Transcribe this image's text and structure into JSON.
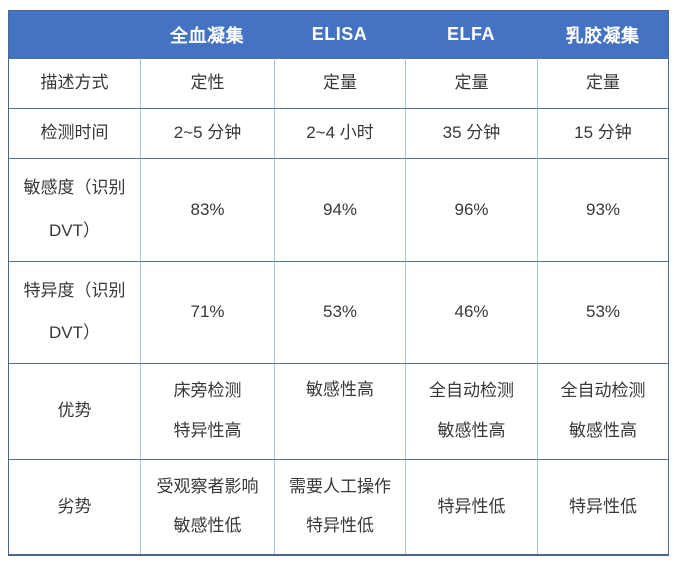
{
  "colors": {
    "header_background": "#4573C4",
    "header_text": "#FFFFFF",
    "horizontal_border": "#4F7194",
    "vertical_border": "#A5C4E3",
    "outer_border": "#49688C",
    "body_text": "#383838"
  },
  "chart_data": {
    "type": "table",
    "title": "",
    "columns": [
      "",
      "全血凝集",
      "ELISA",
      "ELFA",
      "乳胶凝集"
    ],
    "rows": [
      {
        "label": {
          "lines": [
            "描述方式"
          ]
        },
        "cells": [
          {
            "lines": [
              "定性"
            ]
          },
          {
            "lines": [
              "定量"
            ]
          },
          {
            "lines": [
              "定量"
            ]
          },
          {
            "lines": [
              "定量"
            ]
          }
        ]
      },
      {
        "label": {
          "lines": [
            "检测时间"
          ]
        },
        "cells": [
          {
            "lines": [
              "2~5 分钟"
            ]
          },
          {
            "lines": [
              "2~4 小时"
            ]
          },
          {
            "lines": [
              "35 分钟"
            ]
          },
          {
            "lines": [
              "15 分钟"
            ]
          }
        ]
      },
      {
        "label": {
          "lines": [
            "敏感度（识别",
            "DVT）"
          ]
        },
        "cells": [
          {
            "lines": [
              "83%"
            ]
          },
          {
            "lines": [
              "94%"
            ]
          },
          {
            "lines": [
              "96%"
            ]
          },
          {
            "lines": [
              "93%"
            ]
          }
        ]
      },
      {
        "label": {
          "lines": [
            "特异度（识别",
            "DVT）"
          ]
        },
        "cells": [
          {
            "lines": [
              "71%"
            ]
          },
          {
            "lines": [
              "53%"
            ]
          },
          {
            "lines": [
              "46%"
            ]
          },
          {
            "lines": [
              "53%"
            ]
          }
        ]
      },
      {
        "label": {
          "lines": [
            "优势"
          ]
        },
        "cells": [
          {
            "lines": [
              "床旁检测",
              "特异性高"
            ]
          },
          {
            "lines": [
              "敏感性高"
            ]
          },
          {
            "lines": [
              "全自动检测",
              "敏感性高"
            ]
          },
          {
            "lines": [
              "全自动检测",
              "敏感性高"
            ]
          }
        ]
      },
      {
        "label": {
          "lines": [
            "劣势"
          ]
        },
        "cells": [
          {
            "lines": [
              "受观察者影响",
              "敏感性低"
            ]
          },
          {
            "lines": [
              "需要人工操作",
              "特异性低"
            ]
          },
          {
            "lines": [
              "特异性低"
            ]
          },
          {
            "lines": [
              "特异性低"
            ]
          }
        ]
      }
    ]
  }
}
